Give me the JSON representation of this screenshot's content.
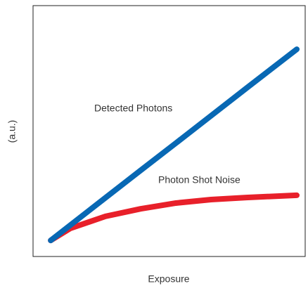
{
  "chart_data": {
    "type": "line",
    "x_label": "Exposure",
    "y_label": "(a.u.)",
    "x": [
      0.65,
      1.37,
      2.66,
      3.95,
      5.25,
      6.54,
      7.83,
      9.69
    ],
    "series": [
      {
        "name": "Detected Photons",
        "color": "#0868b4",
        "values": [
          0.64,
          1.25,
          2.34,
          3.43,
          4.52,
          5.61,
          6.7,
          8.26
        ]
      },
      {
        "name": "Photon Shot Noise",
        "color": "#e8202a",
        "values": [
          0.64,
          1.12,
          1.6,
          1.9,
          2.13,
          2.27,
          2.35,
          2.44
        ]
      }
    ],
    "xlim": [
      0,
      10
    ],
    "ylim": [
      0,
      10
    ]
  }
}
